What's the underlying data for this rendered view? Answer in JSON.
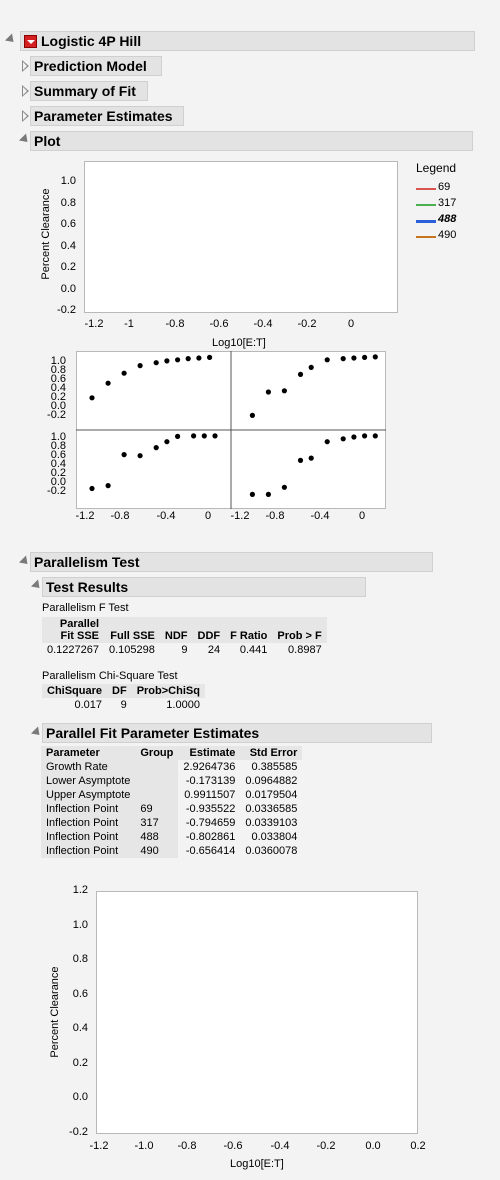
{
  "report": {
    "title": "Logistic 4P Hill",
    "outlines": [
      "Prediction Model",
      "Summary of Fit",
      "Parameter Estimates"
    ],
    "plot_title": "Plot"
  },
  "top_plot": {
    "ylabel": "Percent Clearance",
    "xlabel": "Log10[E:T]",
    "yticks": [
      "1.0",
      "0.8",
      "0.6",
      "0.4",
      "0.2",
      "0.0",
      "-0.2"
    ],
    "xticks": [
      "-1.2",
      "-1",
      "-0.8",
      "-0.6",
      "-0.4",
      "-0.2",
      "0"
    ]
  },
  "legend": {
    "title": "Legend",
    "items": [
      {
        "label": "69",
        "color": "#d9534f"
      },
      {
        "label": "317",
        "color": "#4caf50"
      },
      {
        "label": "488",
        "color": "#2b5fd9"
      },
      {
        "label": "490",
        "color": "#c8731e"
      }
    ]
  },
  "chart_data": {
    "type": "scatter",
    "panels": [
      {
        "x": [
          -1.1,
          -0.95,
          -0.8,
          -0.65,
          -0.5,
          -0.4,
          -0.3,
          -0.2,
          -0.1,
          0.0
        ],
        "y": [
          0.3,
          0.55,
          0.72,
          0.85,
          0.9,
          0.93,
          0.95,
          0.97,
          0.98,
          0.99
        ]
      },
      {
        "x": [
          -1.05,
          -0.9,
          -0.75,
          -0.6,
          -0.5,
          -0.35,
          -0.2,
          -0.1,
          0.0,
          0.1
        ],
        "y": [
          0.0,
          0.4,
          0.42,
          0.7,
          0.82,
          0.95,
          0.97,
          0.98,
          0.99,
          1.0
        ]
      },
      {
        "x": [
          -1.1,
          -0.95,
          -0.8,
          -0.65,
          -0.5,
          -0.4,
          -0.3,
          -0.15,
          -0.05,
          0.05
        ],
        "y": [
          0.1,
          0.15,
          0.68,
          0.66,
          0.8,
          0.9,
          0.99,
          1.0,
          1.0,
          1.0
        ]
      },
      {
        "x": [
          -1.05,
          -0.9,
          -0.75,
          -0.6,
          -0.5,
          -0.35,
          -0.2,
          -0.1,
          0.0,
          0.1
        ],
        "y": [
          0.0,
          0.0,
          0.12,
          0.58,
          0.62,
          0.9,
          0.95,
          0.98,
          1.0,
          1.0
        ]
      }
    ],
    "yticks": [
      "1.0",
      "0.8",
      "0.6",
      "0.4",
      "0.2",
      "0.0",
      "-0.2"
    ],
    "xticks": [
      "-1.2",
      "-0.8",
      "-0.4",
      "0"
    ]
  },
  "parallelism": {
    "title": "Parallelism Test",
    "test_results_title": "Test Results",
    "f_test_label": "Parallelism F Test",
    "f_headers": [
      "Parallel\nFit SSE",
      "Full SSE",
      "NDF",
      "DDF",
      "F Ratio",
      "Prob > F"
    ],
    "f_row": [
      "0.1227267",
      "0.105298",
      "9",
      "24",
      "0.441",
      "0.8987"
    ],
    "chi_label": "Parallelism Chi-Square Test",
    "chi_headers": [
      "ChiSquare",
      "DF",
      "Prob>ChiSq"
    ],
    "chi_row": [
      "0.017",
      "9",
      "1.0000"
    ]
  },
  "parallel_fit": {
    "title": "Parallel Fit Parameter Estimates",
    "headers": [
      "Parameter",
      "Group",
      "Estimate",
      "Std Error"
    ],
    "rows": [
      [
        "Growth Rate",
        "",
        "2.9264736",
        "0.385585"
      ],
      [
        "Lower Asymptote",
        "",
        "-0.173139",
        "0.0964882"
      ],
      [
        "Upper Asymptote",
        "",
        "0.9911507",
        "0.0179504"
      ],
      [
        "Inflection Point",
        "69",
        "-0.935522",
        "0.0336585"
      ],
      [
        "Inflection Point",
        "317",
        "-0.794659",
        "0.0339103"
      ],
      [
        "Inflection Point",
        "488",
        "-0.802861",
        "0.033804"
      ],
      [
        "Inflection Point",
        "490",
        "-0.656414",
        "0.0360078"
      ]
    ]
  },
  "bottom_plot": {
    "ylabel": "Percent Clearance",
    "xlabel": "Log10[E:T]",
    "yticks": [
      "1.2",
      "1.0",
      "0.8",
      "0.6",
      "0.4",
      "0.2",
      "0.0",
      "-0.2"
    ],
    "xticks": [
      "-1.2",
      "-1.0",
      "-0.8",
      "-0.6",
      "-0.4",
      "-0.2",
      "0.0",
      "0.2"
    ]
  }
}
